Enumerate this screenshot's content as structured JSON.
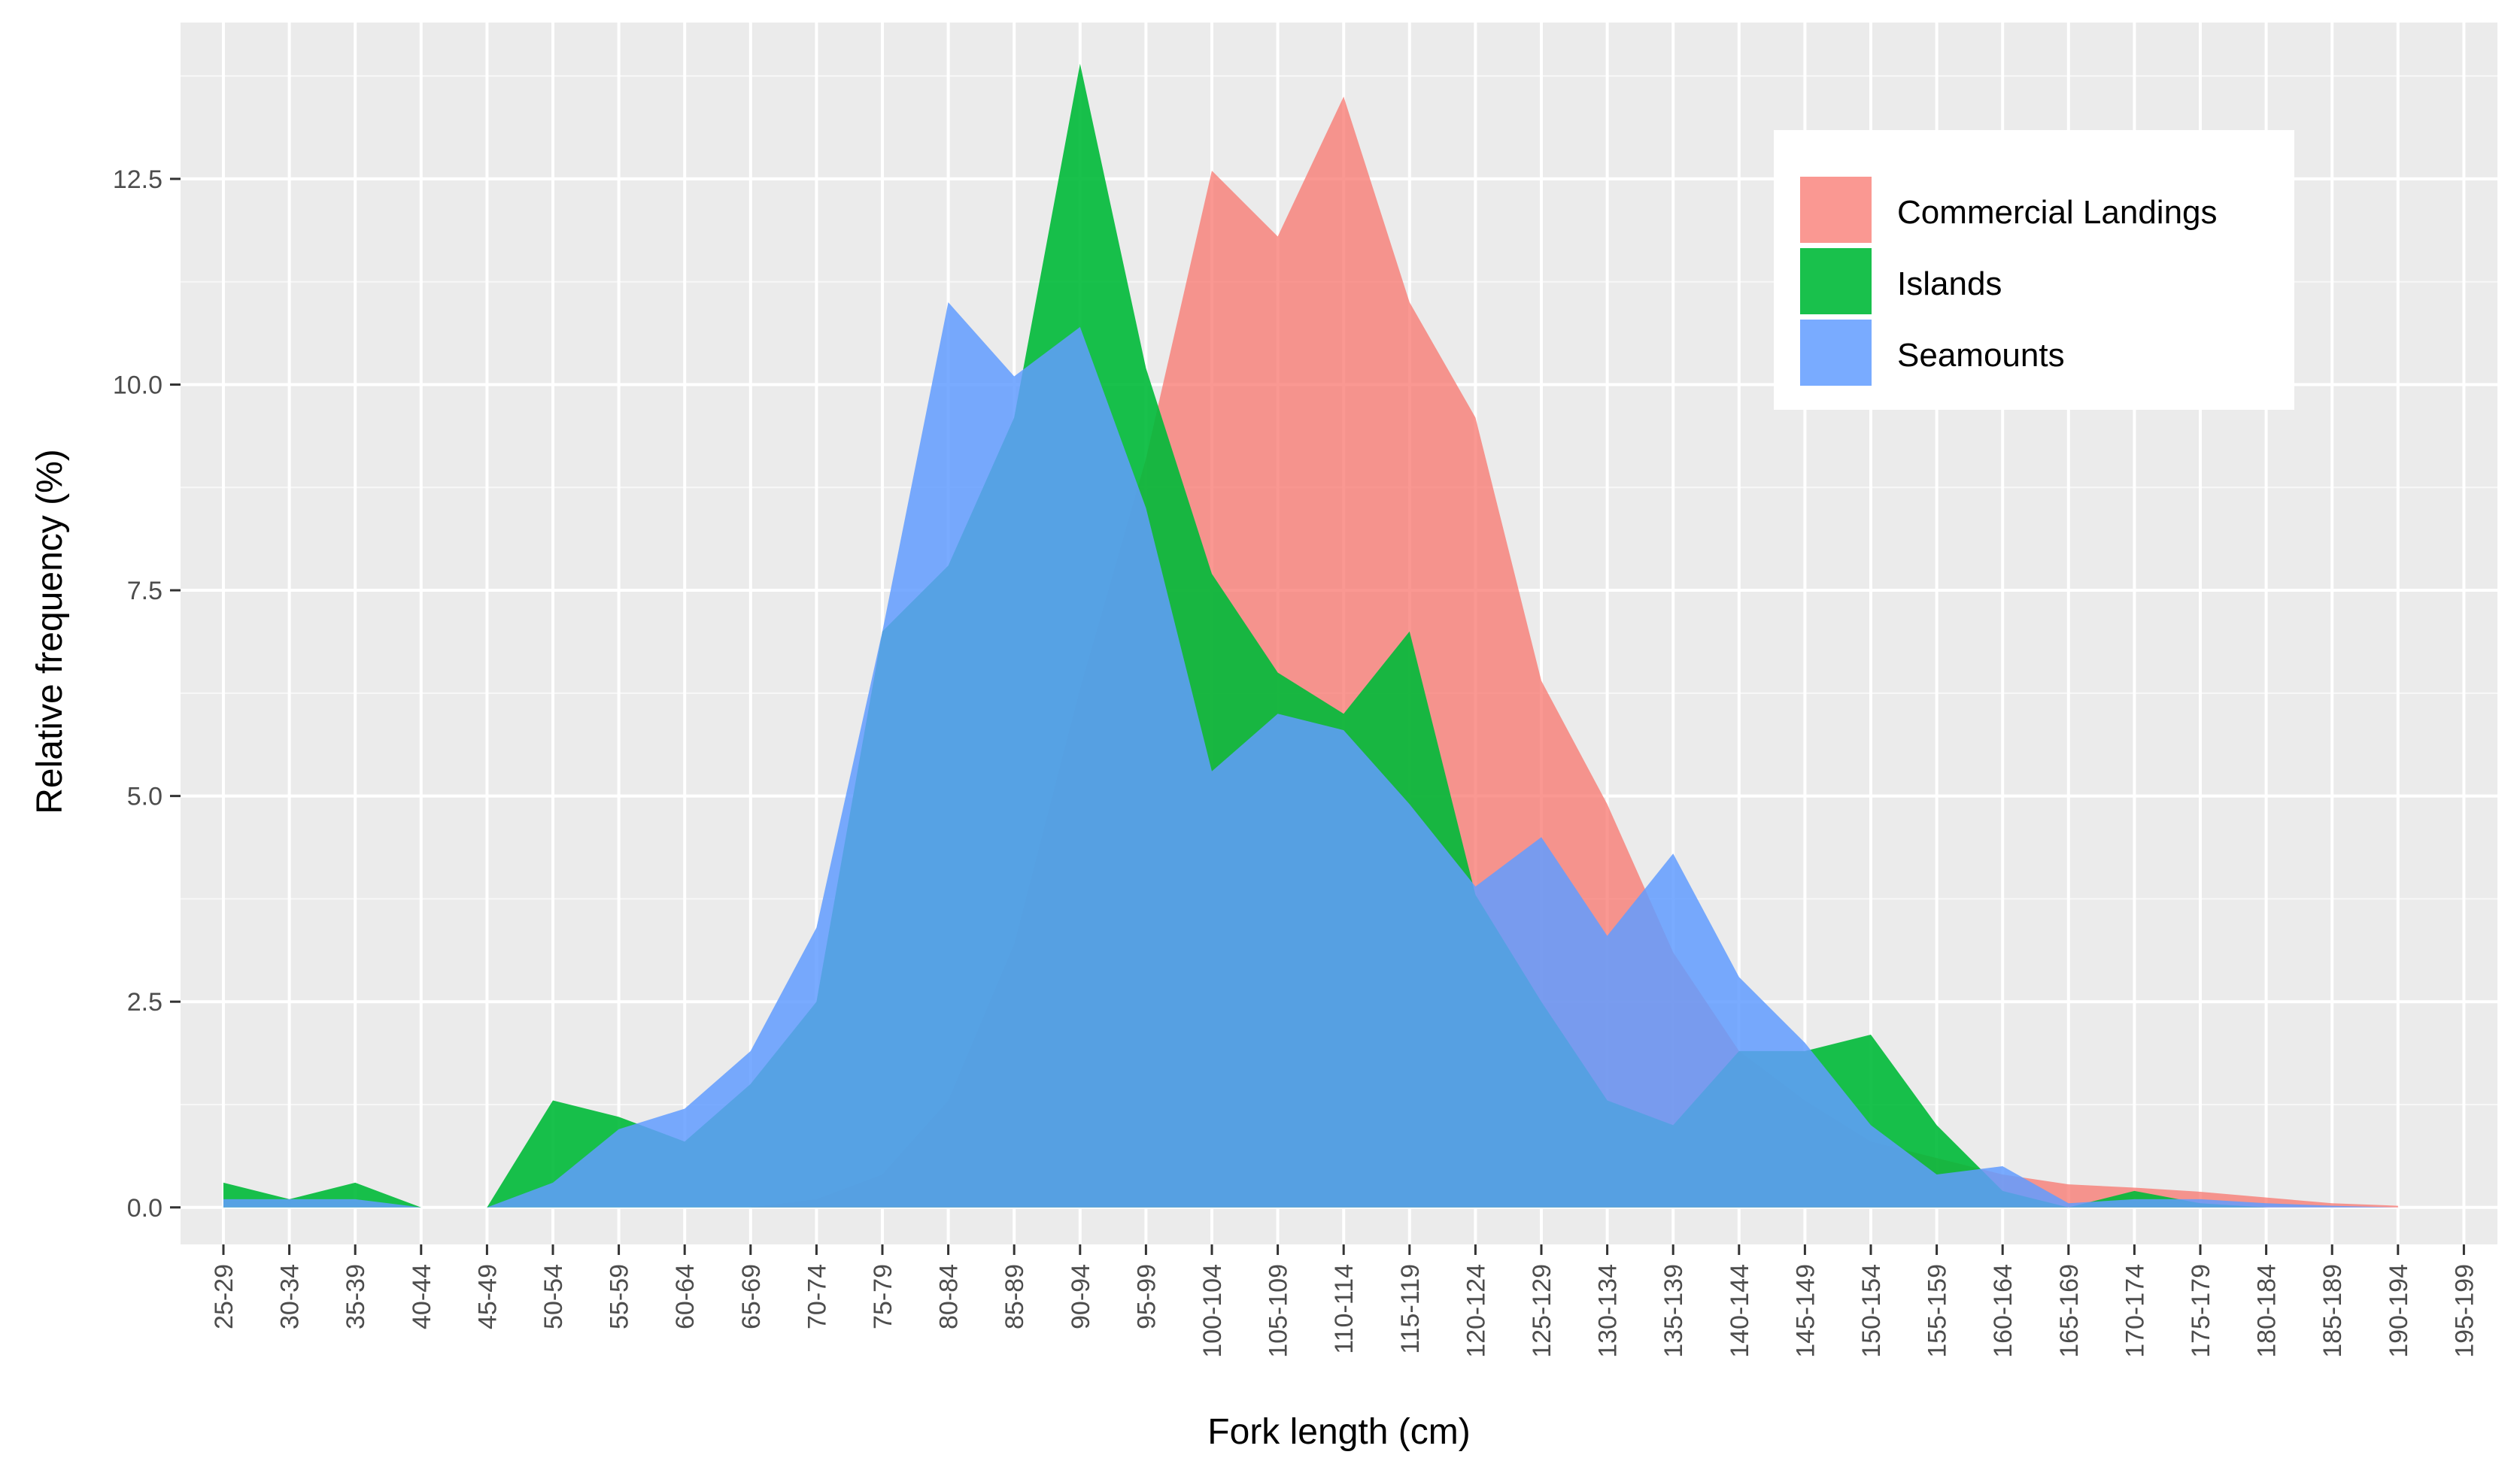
{
  "chart_data": {
    "type": "area",
    "title": "",
    "xlabel": "Fork length (cm)",
    "ylabel": "Relative frequency (%)",
    "ylim": [
      -0.45,
      14.4
    ],
    "yticks": [
      0.0,
      2.5,
      5.0,
      7.5,
      10.0,
      12.5
    ],
    "ytick_labels": [
      "0.0",
      "2.5",
      "5.0",
      "7.5",
      "10.0",
      "12.5"
    ],
    "grid": true,
    "legend_position": "top-right",
    "categories": [
      "25-29",
      "30-34",
      "35-39",
      "40-44",
      "45-49",
      "50-54",
      "55-59",
      "60-64",
      "65-69",
      "70-74",
      "75-79",
      "80-84",
      "85-89",
      "90-94",
      "95-99",
      "100-104",
      "105-109",
      "110-114",
      "115-119",
      "120-124",
      "125-129",
      "130-134",
      "135-139",
      "140-144",
      "145-149",
      "150-154",
      "155-159",
      "160-164",
      "165-169",
      "170-174",
      "175-179",
      "180-184",
      "185-189",
      "190-194",
      "195-199"
    ],
    "series": [
      {
        "name": "Commercial Landings",
        "color": "#f8766d",
        "values": [
          0,
          0,
          0,
          0,
          0,
          0,
          0,
          0,
          0,
          0.1,
          0.4,
          1.3,
          3.2,
          6.3,
          9.1,
          12.6,
          11.8,
          13.5,
          11.0,
          9.6,
          6.4,
          4.9,
          3.1,
          1.9,
          1.3,
          0.8,
          0.6,
          0.4,
          0.28,
          0.24,
          0.19,
          0.12,
          0.05,
          0.02,
          null
        ]
      },
      {
        "name": "Islands",
        "color": "#00ba38",
        "values": [
          0.3,
          0.1,
          0.3,
          0,
          0,
          1.3,
          1.1,
          0.8,
          1.5,
          2.5,
          7.0,
          7.8,
          9.6,
          13.9,
          10.2,
          7.7,
          6.5,
          6.0,
          7.0,
          3.8,
          2.5,
          1.3,
          1.0,
          1.9,
          1.9,
          2.1,
          1.0,
          0.2,
          0,
          0.2,
          0.05,
          0,
          0,
          0,
          null
        ]
      },
      {
        "name": "Seamounts",
        "color": "#619cff",
        "values": [
          0.1,
          0.1,
          0.1,
          0,
          0,
          0.3,
          0.95,
          1.2,
          1.9,
          3.4,
          7.0,
          11.0,
          10.1,
          10.7,
          8.5,
          5.3,
          6.0,
          5.8,
          4.9,
          3.9,
          4.5,
          3.3,
          4.3,
          2.8,
          2.0,
          1.0,
          0.4,
          0.5,
          0.05,
          0.1,
          0.1,
          0.05,
          0.02,
          0,
          null
        ]
      }
    ]
  }
}
